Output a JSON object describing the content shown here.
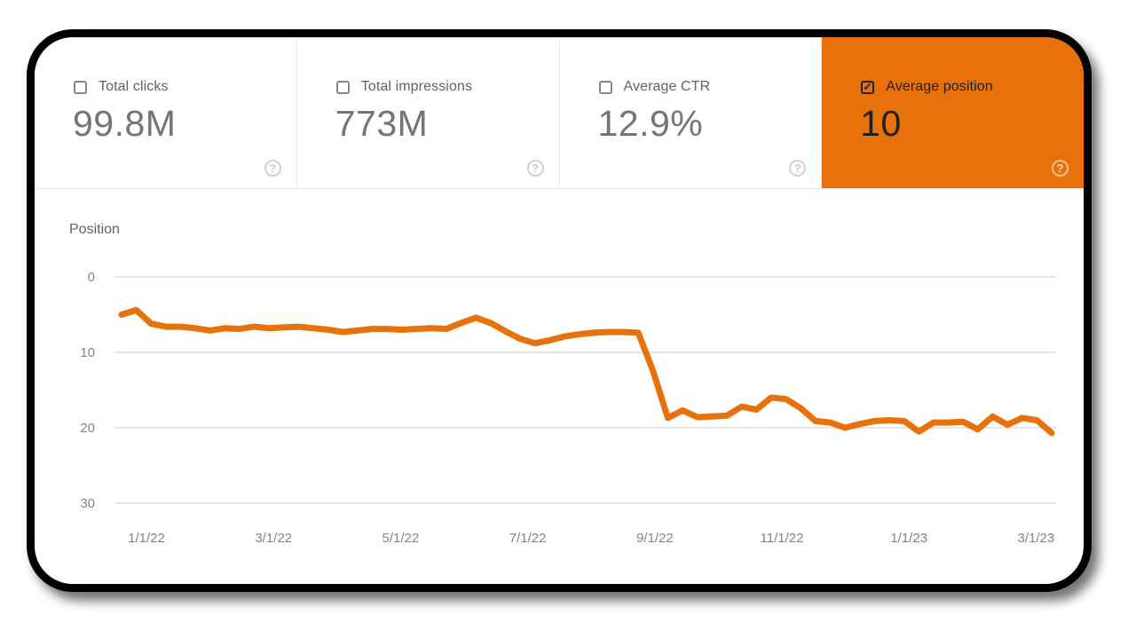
{
  "panel": {
    "accent_color": "#e8710a",
    "cards": [
      {
        "label": "Total clicks",
        "value": "99.8M",
        "checked": false,
        "selected": false
      },
      {
        "label": "Total impressions",
        "value": "773M",
        "checked": false,
        "selected": false
      },
      {
        "label": "Average CTR",
        "value": "12.9%",
        "checked": false,
        "selected": false
      },
      {
        "label": "Average position",
        "value": "10",
        "checked": true,
        "selected": true
      }
    ]
  },
  "icons": {
    "help_glyph": "?",
    "check_glyph": "✓"
  },
  "colors": {
    "accent": "#e8710a",
    "grid_line": "#e6e6e6",
    "axis_text": "#80868b",
    "label_text": "#5f6368",
    "selected_text": "#202124"
  },
  "chart_data": {
    "type": "line",
    "title": "Position",
    "xlabel": "",
    "ylabel": "Position",
    "x_interval": "weekly",
    "x_tick_labels": [
      "1/1/22",
      "3/1/22",
      "5/1/22",
      "7/1/22",
      "9/1/22",
      "11/1/22",
      "1/1/23",
      "3/1/23"
    ],
    "y_ticks": [
      0,
      10,
      20,
      30
    ],
    "ylim": [
      0,
      30
    ],
    "y_axis_inverted": true,
    "grid": "horizontal-only",
    "legend": "none",
    "series": [
      {
        "name": "Average position",
        "color": "#e8710a",
        "values": [
          5.0,
          4.4,
          6.2,
          6.6,
          6.6,
          6.8,
          7.1,
          6.8,
          6.9,
          6.6,
          6.8,
          6.7,
          6.6,
          6.8,
          7.0,
          7.3,
          7.1,
          6.9,
          6.9,
          7.0,
          6.9,
          6.8,
          6.9,
          6.1,
          5.4,
          6.1,
          7.2,
          8.2,
          8.8,
          8.4,
          7.9,
          7.6,
          7.4,
          7.3,
          7.3,
          7.4,
          12.5,
          18.7,
          17.7,
          18.6,
          18.5,
          18.4,
          17.2,
          17.6,
          16.0,
          16.2,
          17.4,
          19.1,
          19.3,
          20.0,
          19.5,
          19.1,
          19.0,
          19.1,
          20.5,
          19.3,
          19.3,
          19.2,
          20.2,
          18.5,
          19.6,
          18.7,
          19.0,
          20.7
        ]
      }
    ]
  }
}
